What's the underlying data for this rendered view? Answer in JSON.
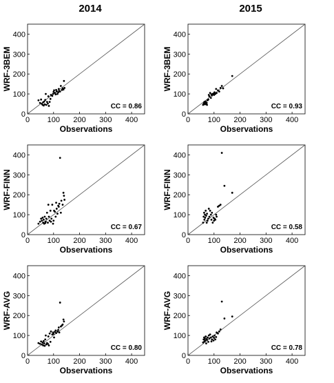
{
  "column_titles": [
    "2014",
    "2015"
  ],
  "chart_data": [
    {
      "type": "scatter",
      "year": "2014",
      "ylabel": "WRF-3BEM",
      "xlabel": "Observations",
      "annotation": "CC = 0.86",
      "xlim": [
        0,
        450
      ],
      "ylim": [
        0,
        450
      ],
      "xticks": [
        0,
        100,
        200,
        300,
        400
      ],
      "yticks": [
        0,
        100,
        200,
        300,
        400
      ],
      "reference_line": "1:1",
      "grid": false,
      "points": [
        [
          42,
          68
        ],
        [
          48,
          55
        ],
        [
          52,
          72
        ],
        [
          55,
          50
        ],
        [
          58,
          45
        ],
        [
          60,
          58
        ],
        [
          62,
          42
        ],
        [
          64,
          62
        ],
        [
          66,
          48
        ],
        [
          68,
          70
        ],
        [
          70,
          100
        ],
        [
          72,
          45
        ],
        [
          75,
          60
        ],
        [
          78,
          52
        ],
        [
          80,
          88
        ],
        [
          82,
          40
        ],
        [
          85,
          60
        ],
        [
          88,
          75
        ],
        [
          90,
          95
        ],
        [
          95,
          90
        ],
        [
          98,
          100
        ],
        [
          100,
          110
        ],
        [
          102,
          118
        ],
        [
          105,
          105
        ],
        [
          108,
          98
        ],
        [
          110,
          120
        ],
        [
          112,
          112
        ],
        [
          115,
          100
        ],
        [
          118,
          108
        ],
        [
          120,
          125
        ],
        [
          122,
          115
        ],
        [
          125,
          112
        ],
        [
          128,
          140
        ],
        [
          132,
          120
        ],
        [
          135,
          128
        ],
        [
          138,
          122
        ],
        [
          140,
          165
        ],
        [
          142,
          130
        ]
      ]
    },
    {
      "type": "scatter",
      "year": "2015",
      "ylabel": "WRF-3BEM",
      "xlabel": "Observations",
      "annotation": "CC = 0.93",
      "xlim": [
        0,
        450
      ],
      "ylim": [
        0,
        450
      ],
      "xticks": [
        0,
        100,
        200,
        300,
        400
      ],
      "yticks": [
        0,
        100,
        200,
        300,
        400
      ],
      "reference_line": "1:1",
      "grid": false,
      "points": [
        [
          58,
          45
        ],
        [
          60,
          50
        ],
        [
          62,
          55
        ],
        [
          63,
          60
        ],
        [
          65,
          48
        ],
        [
          66,
          52
        ],
        [
          67,
          58
        ],
        [
          68,
          62
        ],
        [
          70,
          50
        ],
        [
          72,
          55
        ],
        [
          73,
          45
        ],
        [
          75,
          68
        ],
        [
          78,
          72
        ],
        [
          80,
          95
        ],
        [
          82,
          88
        ],
        [
          85,
          105
        ],
        [
          88,
          80
        ],
        [
          90,
          98
        ],
        [
          92,
          92
        ],
        [
          95,
          100
        ],
        [
          98,
          102
        ],
        [
          100,
          95
        ],
        [
          102,
          108
        ],
        [
          105,
          100
        ],
        [
          108,
          125
        ],
        [
          110,
          105
        ],
        [
          115,
          118
        ],
        [
          120,
          112
        ],
        [
          125,
          130
        ],
        [
          130,
          140
        ],
        [
          135,
          128
        ],
        [
          170,
          190
        ]
      ]
    },
    {
      "type": "scatter",
      "year": "2014",
      "ylabel": "WRF-FINN",
      "xlabel": "Observations",
      "annotation": "CC = 0.67",
      "xlim": [
        0,
        450
      ],
      "ylim": [
        0,
        450
      ],
      "xticks": [
        0,
        100,
        200,
        300,
        400
      ],
      "yticks": [
        0,
        100,
        200,
        300,
        400
      ],
      "reference_line": "1:1",
      "grid": false,
      "points": [
        [
          42,
          55
        ],
        [
          48,
          65
        ],
        [
          52,
          80
        ],
        [
          55,
          70
        ],
        [
          58,
          85
        ],
        [
          60,
          60
        ],
        [
          62,
          75
        ],
        [
          64,
          55
        ],
        [
          66,
          90
        ],
        [
          68,
          58
        ],
        [
          70,
          65
        ],
        [
          72,
          80
        ],
        [
          75,
          110
        ],
        [
          78,
          60
        ],
        [
          80,
          150
        ],
        [
          82,
          90
        ],
        [
          85,
          70
        ],
        [
          88,
          120
        ],
        [
          90,
          65
        ],
        [
          92,
          80
        ],
        [
          95,
          150
        ],
        [
          98,
          55
        ],
        [
          100,
          70
        ],
        [
          102,
          120
        ],
        [
          105,
          115
        ],
        [
          108,
          90
        ],
        [
          110,
          160
        ],
        [
          112,
          130
        ],
        [
          115,
          105
        ],
        [
          118,
          145
        ],
        [
          120,
          140
        ],
        [
          122,
          155
        ],
        [
          125,
          385
        ],
        [
          128,
          110
        ],
        [
          130,
          170
        ],
        [
          135,
          150
        ],
        [
          138,
          210
        ],
        [
          140,
          195
        ],
        [
          142,
          175
        ]
      ]
    },
    {
      "type": "scatter",
      "year": "2015",
      "ylabel": "WRF-FINN",
      "xlabel": "Observations",
      "annotation": "CC = 0.58",
      "xlim": [
        0,
        450
      ],
      "ylim": [
        0,
        450
      ],
      "xticks": [
        0,
        100,
        200,
        300,
        400
      ],
      "yticks": [
        0,
        100,
        200,
        300,
        400
      ],
      "reference_line": "1:1",
      "grid": false,
      "points": [
        [
          58,
          60
        ],
        [
          60,
          90
        ],
        [
          62,
          110
        ],
        [
          63,
          75
        ],
        [
          65,
          100
        ],
        [
          66,
          85
        ],
        [
          68,
          120
        ],
        [
          70,
          95
        ],
        [
          72,
          60
        ],
        [
          73,
          105
        ],
        [
          75,
          70
        ],
        [
          78,
          80
        ],
        [
          80,
          130
        ],
        [
          82,
          90
        ],
        [
          85,
          120
        ],
        [
          88,
          100
        ],
        [
          90,
          75
        ],
        [
          92,
          110
        ],
        [
          95,
          60
        ],
        [
          98,
          85
        ],
        [
          100,
          70
        ],
        [
          102,
          80
        ],
        [
          105,
          75
        ],
        [
          108,
          100
        ],
        [
          110,
          90
        ],
        [
          115,
          140
        ],
        [
          120,
          145
        ],
        [
          125,
          150
        ],
        [
          130,
          410
        ],
        [
          140,
          245
        ],
        [
          170,
          210
        ]
      ]
    },
    {
      "type": "scatter",
      "year": "2014",
      "ylabel": "WRF-AVG",
      "xlabel": "Observations",
      "annotation": "CC = 0.80",
      "xlim": [
        0,
        450
      ],
      "ylim": [
        0,
        450
      ],
      "xticks": [
        0,
        100,
        200,
        300,
        400
      ],
      "yticks": [
        0,
        100,
        200,
        300,
        400
      ],
      "reference_line": "1:1",
      "grid": false,
      "points": [
        [
          42,
          62
        ],
        [
          48,
          58
        ],
        [
          52,
          70
        ],
        [
          55,
          55
        ],
        [
          58,
          65
        ],
        [
          60,
          50
        ],
        [
          62,
          72
        ],
        [
          64,
          60
        ],
        [
          66,
          48
        ],
        [
          68,
          80
        ],
        [
          70,
          100
        ],
        [
          72,
          55
        ],
        [
          75,
          62
        ],
        [
          78,
          58
        ],
        [
          80,
          95
        ],
        [
          82,
          50
        ],
        [
          85,
          110
        ],
        [
          88,
          68
        ],
        [
          90,
          120
        ],
        [
          95,
          105
        ],
        [
          98,
          115
        ],
        [
          100,
          108
        ],
        [
          102,
          90
        ],
        [
          105,
          118
        ],
        [
          108,
          125
        ],
        [
          110,
          112
        ],
        [
          115,
          120
        ],
        [
          118,
          128
        ],
        [
          120,
          140
        ],
        [
          122,
          115
        ],
        [
          125,
          265
        ],
        [
          128,
          145
        ],
        [
          132,
          150
        ],
        [
          135,
          155
        ],
        [
          138,
          180
        ],
        [
          140,
          170
        ]
      ]
    },
    {
      "type": "scatter",
      "year": "2015",
      "ylabel": "WRF-AVG",
      "xlabel": "Observations",
      "annotation": "CC = 0.78",
      "xlim": [
        0,
        450
      ],
      "ylim": [
        0,
        450
      ],
      "xticks": [
        0,
        100,
        200,
        300,
        400
      ],
      "yticks": [
        0,
        100,
        200,
        300,
        400
      ],
      "reference_line": "1:1",
      "grid": false,
      "points": [
        [
          58,
          65
        ],
        [
          60,
          80
        ],
        [
          62,
          90
        ],
        [
          63,
          70
        ],
        [
          65,
          85
        ],
        [
          66,
          75
        ],
        [
          68,
          95
        ],
        [
          70,
          60
        ],
        [
          72,
          82
        ],
        [
          73,
          78
        ],
        [
          75,
          90
        ],
        [
          78,
          68
        ],
        [
          80,
          100
        ],
        [
          82,
          85
        ],
        [
          85,
          105
        ],
        [
          88,
          90
        ],
        [
          90,
          70
        ],
        [
          92,
          80
        ],
        [
          95,
          95
        ],
        [
          98,
          75
        ],
        [
          100,
          88
        ],
        [
          102,
          100
        ],
        [
          105,
          80
        ],
        [
          108,
          92
        ],
        [
          110,
          115
        ],
        [
          115,
          110
        ],
        [
          120,
          120
        ],
        [
          125,
          130
        ],
        [
          130,
          270
        ],
        [
          140,
          185
        ],
        [
          170,
          195
        ]
      ]
    }
  ]
}
